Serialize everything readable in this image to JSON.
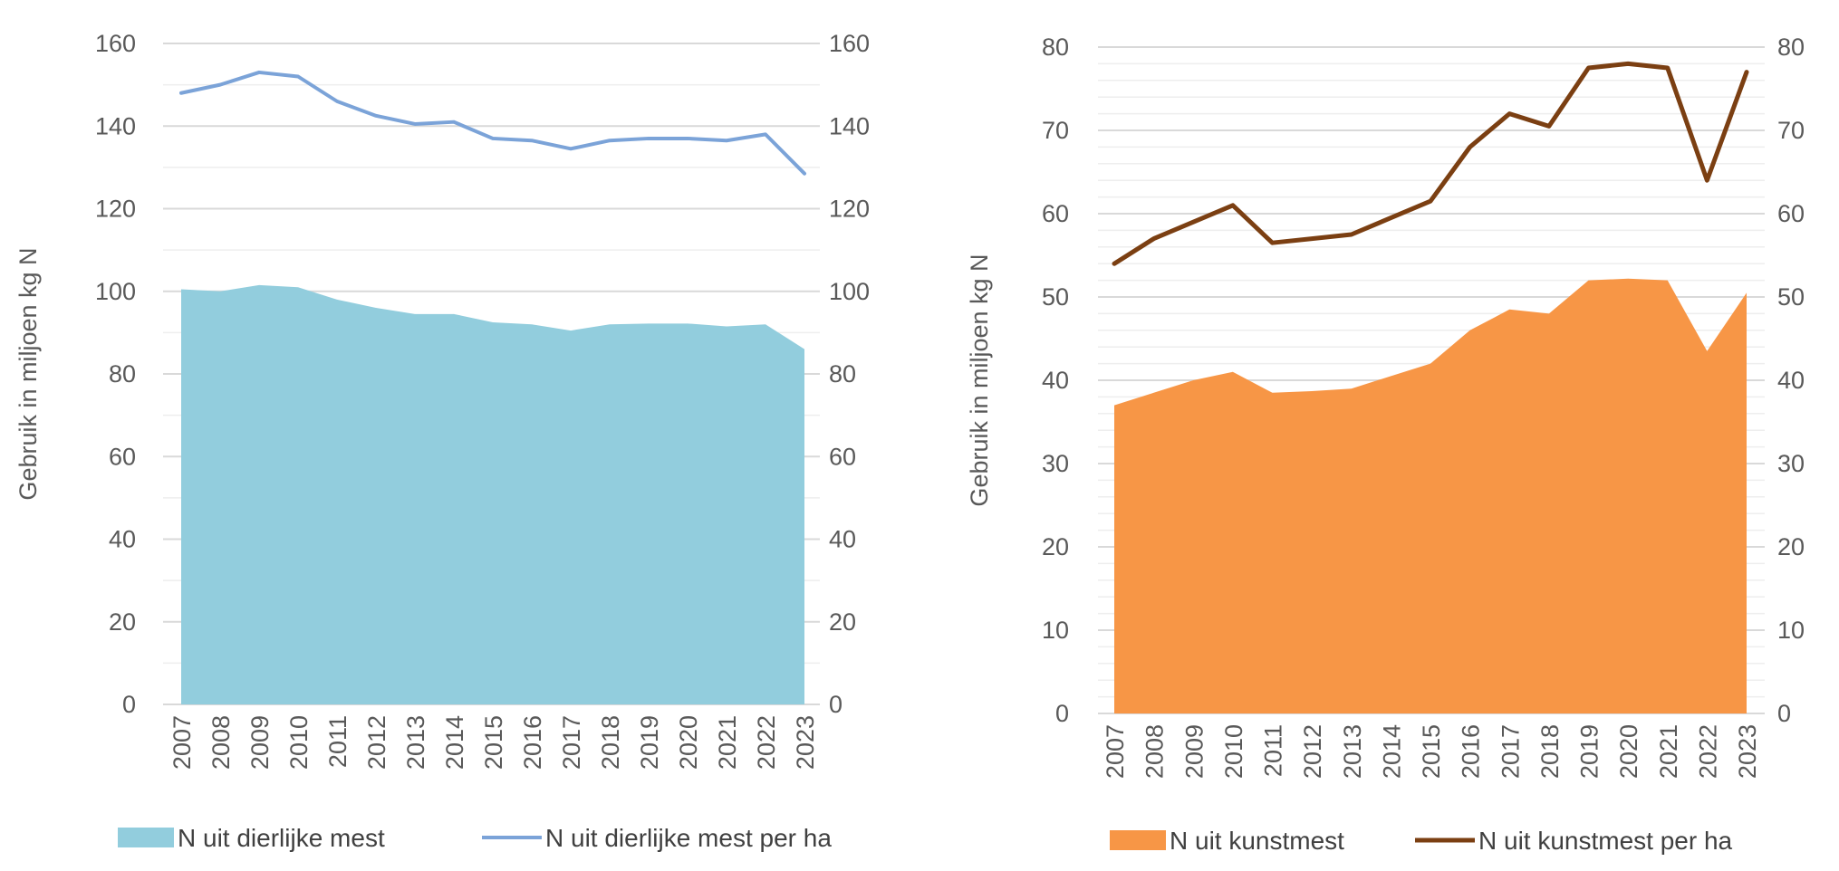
{
  "chart_data": [
    {
      "type": "area+line",
      "title": "",
      "ylabel": "Gebruik in miljoen kg N",
      "ylim": [
        0,
        160
      ],
      "y_ticks": [
        0,
        20,
        40,
        60,
        80,
        100,
        120,
        140,
        160
      ],
      "y2lim": [
        0,
        160
      ],
      "y2_ticks": [
        0,
        20,
        40,
        60,
        80,
        100,
        120,
        140,
        160
      ],
      "categories": [
        "2007",
        "2008",
        "2009",
        "2010",
        "2011",
        "2012",
        "2013",
        "2014",
        "2015",
        "2016",
        "2017",
        "2018",
        "2019",
        "2020",
        "2021",
        "2022",
        "2023"
      ],
      "series": [
        {
          "name": "N uit dierlijke mest",
          "kind": "area",
          "axis": "left",
          "color": "#92cddd",
          "values": [
            100.5,
            100,
            101.5,
            101,
            98,
            96,
            94.5,
            94.5,
            92.5,
            92,
            90.5,
            92,
            92.2,
            92.2,
            91.5,
            92,
            86
          ]
        },
        {
          "name": "N uit dierlijke mest per ha",
          "kind": "line",
          "axis": "right",
          "color": "#7ba3d8",
          "values": [
            148,
            150,
            153,
            152,
            146,
            142.5,
            140.5,
            141,
            137,
            136.5,
            134.5,
            136.5,
            137,
            137,
            136.5,
            138,
            128.5
          ]
        }
      ],
      "legend": {
        "position": "bottom",
        "items": [
          "N uit dierlijke mest",
          "N uit dierlijke mest per ha"
        ]
      }
    },
    {
      "type": "area+line",
      "title": "",
      "ylabel": "Gebruik in miljoen kg N",
      "ylim": [
        0,
        80
      ],
      "y_ticks": [
        0,
        10,
        20,
        30,
        40,
        50,
        60,
        70,
        80
      ],
      "y2lim": [
        0,
        80
      ],
      "y2_ticks": [
        0,
        10,
        20,
        30,
        40,
        50,
        60,
        70,
        80
      ],
      "categories": [
        "2007",
        "2008",
        "2009",
        "2010",
        "2011",
        "2012",
        "2013",
        "2014",
        "2015",
        "2016",
        "2017",
        "2018",
        "2019",
        "2020",
        "2021",
        "2022",
        "2023"
      ],
      "series": [
        {
          "name": "N uit kunstmest",
          "kind": "area",
          "axis": "left",
          "color": "#f79646",
          "values": [
            37,
            38.5,
            40,
            41,
            38.5,
            38.7,
            39,
            40.5,
            42,
            46,
            48.5,
            48,
            52,
            52.2,
            52,
            43.5,
            50.5
          ]
        },
        {
          "name": "N uit kunstmest per ha",
          "kind": "line",
          "axis": "right",
          "color": "#7b3f12",
          "values": [
            54,
            57,
            59,
            61,
            56.5,
            57,
            57.5,
            59.5,
            61.5,
            68,
            72,
            70.5,
            77.5,
            78,
            77.5,
            64,
            77
          ]
        }
      ],
      "legend": {
        "position": "bottom",
        "items": [
          "N uit kunstmest",
          "N uit kunstmest per ha"
        ]
      }
    }
  ]
}
